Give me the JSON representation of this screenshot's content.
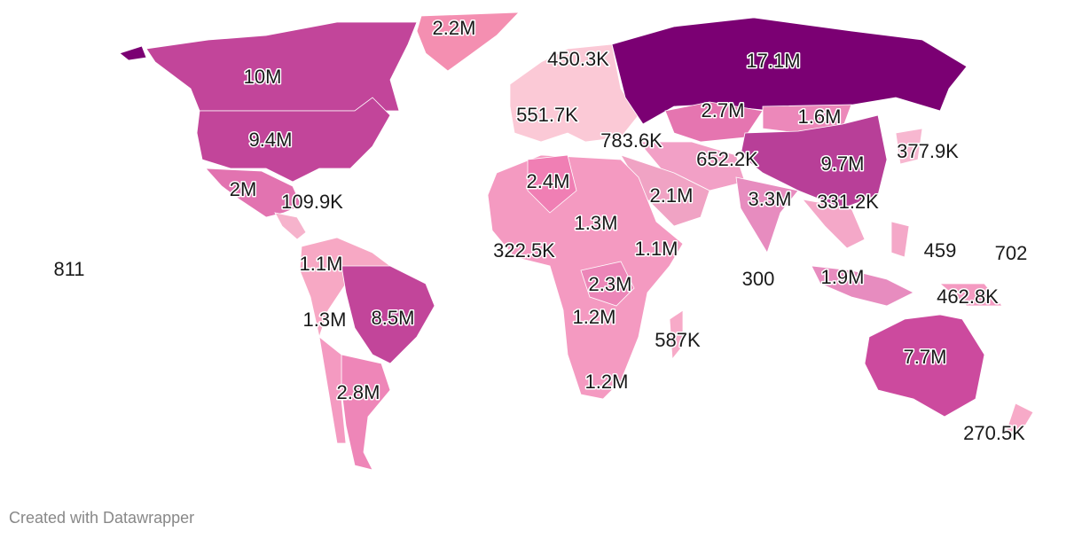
{
  "labels": [
    "2.2M",
    "450.3K",
    "17.1M",
    "10M",
    "551.7K",
    "2.7M",
    "1.6M",
    "9.4M",
    "783.6K",
    "377.9K",
    "652.2K",
    "9.7M",
    "2M",
    "109.9K",
    "2.4M",
    "2.1M",
    "3.3M",
    "331.2K",
    "1.3M",
    "322.5K",
    "1.1M",
    "459",
    "702",
    "811",
    "1.1M",
    "300",
    "1.9M",
    "2.3M",
    "462.8K",
    "1.3M",
    "8.5M",
    "1.2M",
    "587K",
    "7.7M",
    "2.8M",
    "1.2M",
    "270.5K"
  ],
  "footer": "Created with Datawrapper"
}
